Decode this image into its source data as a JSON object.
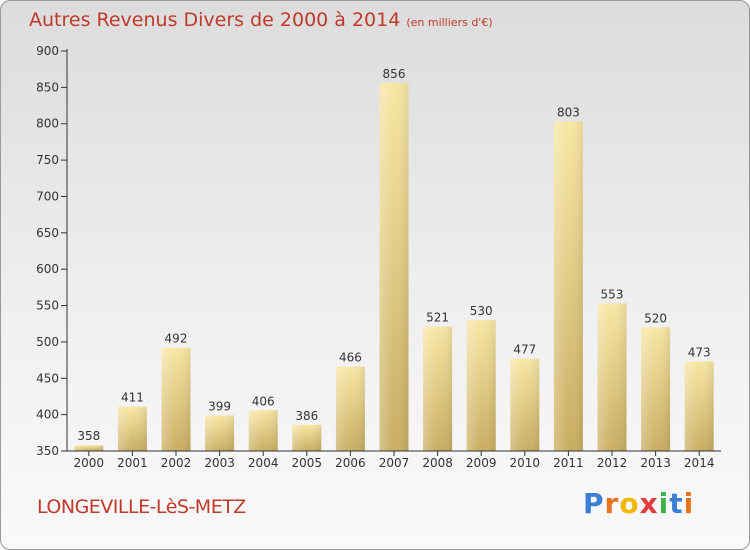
{
  "header": {
    "title": "Autres Revenus Divers de 2000 à 2014",
    "subtitle": "(en milliers d'€)"
  },
  "footer": {
    "place": "LONGEVILLE-LèS-METZ",
    "logo_letters": [
      "P",
      "r",
      "o",
      "x",
      "i",
      "t",
      "i"
    ],
    "logo_colors": [
      "#3b7fd4",
      "#e8731c",
      "#f2b800",
      "#e23b3b",
      "#3bb54a",
      "#3b7fd4",
      "#e8731c"
    ]
  },
  "colors": {
    "bar_light": "#f8e6a4",
    "bar_dark": "#c9ad62",
    "axis": "#333333",
    "grid": "#ffffff"
  },
  "chart_data": {
    "type": "bar",
    "title": "Autres Revenus Divers de 2000 à 2014",
    "subtitle": "(en milliers d'€)",
    "categories": [
      "2000",
      "2001",
      "2002",
      "2003",
      "2004",
      "2005",
      "2006",
      "2007",
      "2008",
      "2009",
      "2010",
      "2011",
      "2012",
      "2013",
      "2014"
    ],
    "values": [
      358,
      411,
      492,
      399,
      406,
      386,
      466,
      856,
      521,
      530,
      477,
      803,
      553,
      520,
      473
    ],
    "ylim": [
      350,
      900
    ],
    "yticks": [
      350,
      400,
      450,
      500,
      550,
      600,
      650,
      700,
      750,
      800,
      850,
      900
    ],
    "grid": false
  }
}
